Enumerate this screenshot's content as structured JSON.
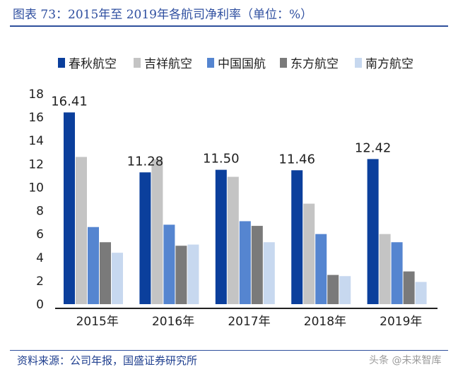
{
  "title": "图表 73：2015年至 2019年各航司净利率（单位：%）",
  "source": "资料来源：公司年报，国盛证券研究所",
  "watermark": "头条 @未来智库",
  "chart_data": {
    "type": "bar",
    "categories": [
      "2015年",
      "2016年",
      "2017年",
      "2018年",
      "2019年"
    ],
    "series": [
      {
        "name": "春秋航空",
        "color": "#0b3f9c",
        "values": [
          16.41,
          11.28,
          11.5,
          11.46,
          12.42
        ]
      },
      {
        "name": "吉祥航空",
        "color": "#c4c4c4",
        "values": [
          12.6,
          12.4,
          10.9,
          8.6,
          6.0
        ]
      },
      {
        "name": "中国国航",
        "color": "#5585d0",
        "values": [
          6.6,
          6.8,
          7.1,
          6.0,
          5.3
        ]
      },
      {
        "name": "东方航空",
        "color": "#7a7a7a",
        "values": [
          5.3,
          5.0,
          6.7,
          2.5,
          2.8
        ]
      },
      {
        "name": "南方航空",
        "color": "#c7d8ef",
        "values": [
          4.4,
          5.1,
          5.3,
          2.4,
          1.9
        ]
      }
    ],
    "data_labels": [
      "16.41",
      "11.28",
      "11.50",
      "11.46",
      "12.42"
    ],
    "yticks": [
      0,
      2,
      4,
      6,
      8,
      10,
      12,
      14,
      16,
      18
    ],
    "ylim": [
      0,
      18
    ],
    "grid": false,
    "legend": "top"
  }
}
